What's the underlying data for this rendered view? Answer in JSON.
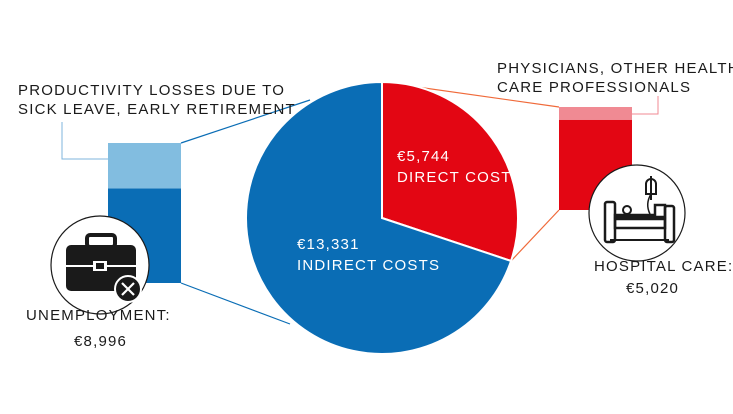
{
  "chart_data": {
    "type": "pie",
    "slices": [
      {
        "label": "DIRECT COSTS",
        "value_text": "€5,744",
        "value": 5744,
        "color": "#e30613"
      },
      {
        "label": "INDIRECT COSTS",
        "value_text": "€13,331",
        "value": 13331,
        "color": "#0a6db5"
      }
    ],
    "breakdowns": [
      {
        "parent": "INDIRECT COSTS",
        "segments": [
          {
            "label": "PRODUCTIVITY LOSSES DUE TO SICK LEAVE, EARLY RETIREMENT",
            "value": 4335,
            "color": "#82bde0"
          },
          {
            "label": "UNEMPLOYMENT:",
            "value_text": "€8,996",
            "value": 8996,
            "color": "#0a6db5"
          }
        ]
      },
      {
        "parent": "DIRECT COSTS",
        "segments": [
          {
            "label": "PHYSICIANS, OTHER HEALTH-CARE PROFESSIONALS",
            "value": 724,
            "color": "#f08a93"
          },
          {
            "label": "HOSPITAL CARE:",
            "value_text": "€5,020",
            "value": 5020,
            "color": "#e30613"
          }
        ]
      }
    ]
  },
  "labels": {
    "productivity_line1": "PRODUCTIVITY LOSSES DUE TO",
    "productivity_line2": "SICK LEAVE, EARLY RETIREMENT",
    "physicians_line1": "PHYSICIANS, OTHER HEALTH-",
    "physicians_line2": "CARE PROFESSIONALS",
    "unemployment_label": "UNEMPLOYMENT:",
    "unemployment_value": "€8,996",
    "hospital_label": "HOSPITAL CARE:",
    "hospital_value": "€5,020",
    "direct_value": "€5,744",
    "direct_label": "DIRECT COSTS",
    "indirect_value": "€13,331",
    "indirect_label": "INDIRECT COSTS"
  },
  "icons": {
    "unemployment": "briefcase-with-x-icon",
    "hospital": "hospital-bed-icon"
  },
  "colors": {
    "blue": "#0a6db5",
    "light_blue": "#82bde0",
    "red": "#e30613",
    "light_red": "#f08a93",
    "connector_blue": "#0a6db5",
    "connector_red": "#f06a3a",
    "callout_line": "#7fb6dc",
    "callout_line_red": "#f08a93"
  }
}
